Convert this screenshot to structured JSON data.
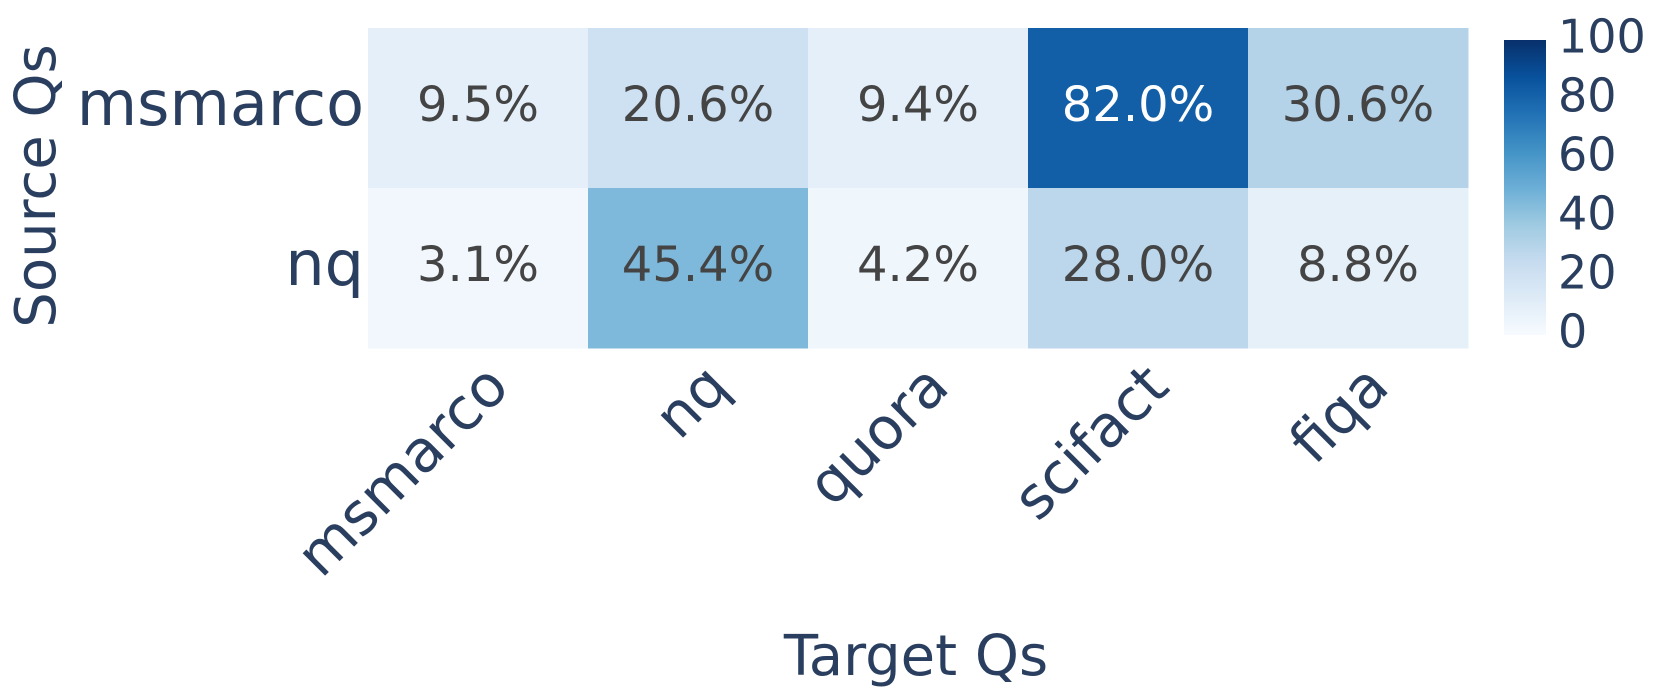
{
  "chart_data": {
    "type": "heatmap",
    "x_label": "Target Qs",
    "y_label": "Source Qs",
    "x_categories": [
      "msmarco",
      "nq",
      "quora",
      "scifact",
      "fiqa"
    ],
    "y_categories": [
      "msmarco",
      "nq"
    ],
    "z": [
      [
        9.5,
        20.6,
        9.4,
        82.0,
        30.6
      ],
      [
        3.1,
        45.4,
        4.2,
        28.0,
        8.8
      ]
    ],
    "value_labels": [
      [
        "9.5%",
        "20.6%",
        "9.4%",
        "82.0%",
        "30.6%"
      ],
      [
        "3.1%",
        "45.4%",
        "4.2%",
        "28.0%",
        "8.8%"
      ]
    ],
    "zlim": [
      0,
      100
    ],
    "zticks": [
      0,
      20,
      40,
      60,
      80,
      100
    ],
    "colorscale": [
      "#f7fbff",
      "#deebf7",
      "#c6dbef",
      "#9ecae1",
      "#6baed6",
      "#4292c6",
      "#2171b5",
      "#08519c",
      "#08306b"
    ]
  }
}
